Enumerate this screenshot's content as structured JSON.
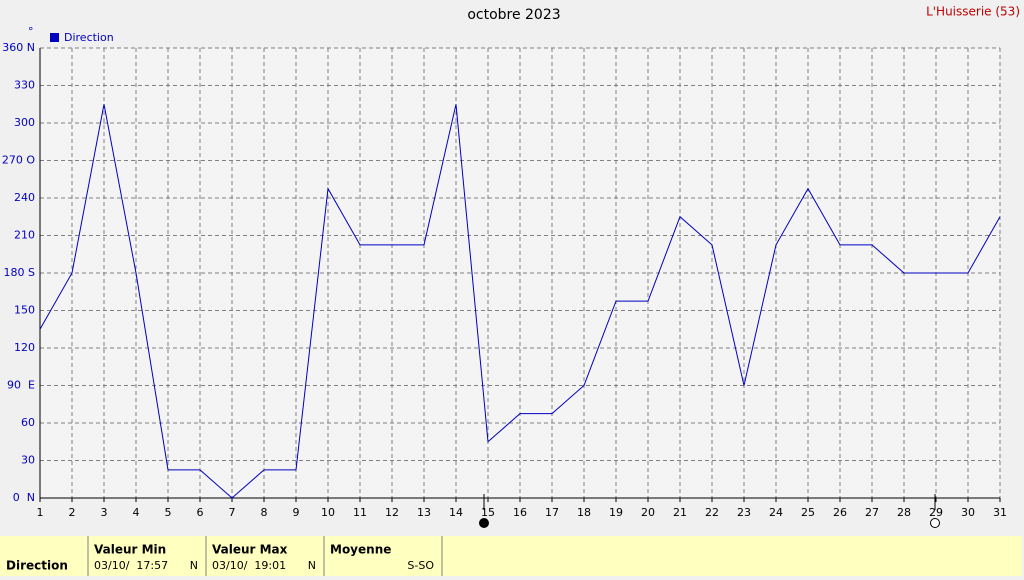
{
  "chart_data": {
    "type": "line",
    "title": "octobre 2023",
    "station": "L'Huisserie (53)",
    "y_unit": "°",
    "categories": [
      "1",
      "2",
      "3",
      "4",
      "5",
      "6",
      "7",
      "8",
      "9",
      "10",
      "11",
      "12",
      "13",
      "14",
      "15",
      "16",
      "17",
      "18",
      "19",
      "20",
      "21",
      "22",
      "23",
      "24",
      "25",
      "26",
      "27",
      "28",
      "29",
      "30",
      "31"
    ],
    "series": [
      {
        "name": "Direction",
        "color": "#0000c0",
        "values": [
          135,
          180,
          315,
          180,
          22.5,
          22.5,
          0,
          22.5,
          22.5,
          247.5,
          202.5,
          202.5,
          202.5,
          315,
          45,
          67.5,
          67.5,
          90,
          157.5,
          157.5,
          225,
          202.5,
          90,
          202.5,
          247.5,
          202.5,
          202.5,
          180,
          180,
          180,
          225
        ]
      }
    ],
    "ylim": [
      0,
      360
    ],
    "yticks": [
      {
        "value": 0,
        "label": "0  N"
      },
      30,
      60,
      {
        "value": 90,
        "label": "90  E"
      },
      120,
      150,
      {
        "value": 180,
        "label": "180 S"
      },
      210,
      240,
      {
        "value": 270,
        "label": "270 O"
      },
      300,
      330,
      {
        "value": 360,
        "label": "360 N"
      }
    ],
    "grid": true
  },
  "table": {
    "row_label": "Direction",
    "columns": [
      {
        "header": "Valeur Min",
        "date": "03/10/  17:57",
        "value": "N"
      },
      {
        "header": "Valeur Max",
        "date": "03/10/  19:01",
        "value": "N"
      },
      {
        "header": "Moyenne",
        "value": "S-SO"
      }
    ]
  }
}
